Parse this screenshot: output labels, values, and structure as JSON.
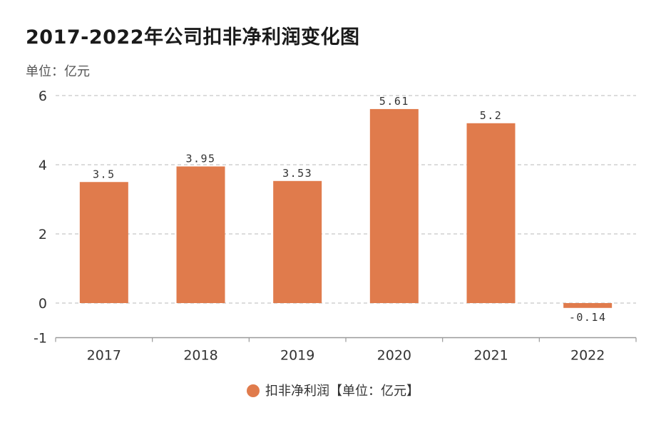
{
  "chart_data": {
    "type": "bar",
    "title": "2017-2022年公司扣非净利润变化图",
    "unit_label": "单位：亿元",
    "categories": [
      "2017",
      "2018",
      "2019",
      "2020",
      "2021",
      "2022"
    ],
    "series": [
      {
        "name": "扣非净利润【单位：亿元】",
        "values": [
          3.5,
          3.95,
          3.53,
          5.61,
          5.2,
          -0.14
        ],
        "labels": [
          "3.5",
          "3.95",
          "3.53",
          "5.61",
          "5.2",
          "-0.14"
        ]
      }
    ],
    "yticks": [
      6,
      4,
      2,
      0,
      -1
    ],
    "ylim": [
      -1,
      6
    ],
    "xlabel": "",
    "ylabel": "",
    "grid": true,
    "legend": "bottom-center"
  },
  "colors": {
    "bar": "#E07B4C",
    "grid": "#c8c8c8",
    "axis": "#999999",
    "text": "#333333"
  }
}
